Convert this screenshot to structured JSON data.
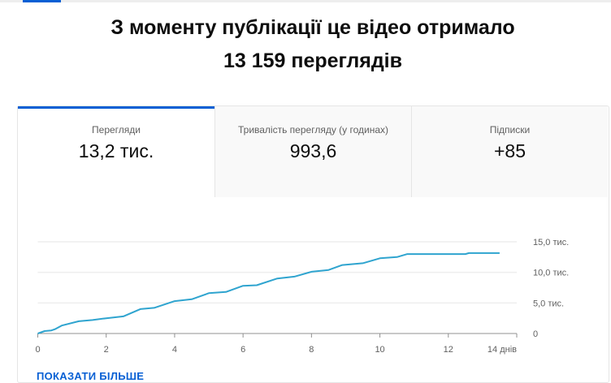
{
  "headline": {
    "line1": "З моменту публікації це відео отримало",
    "line2": "13 159 переглядів"
  },
  "tabs": [
    {
      "label": "Перегляди",
      "value": "13,2 тис.",
      "active": true
    },
    {
      "label": "Тривалість перегляду (у годинах)",
      "value": "993,6",
      "active": false
    },
    {
      "label": "Підписки",
      "value": "+85",
      "active": false
    }
  ],
  "show_more": "ПОКАЗАТИ БІЛЬШЕ",
  "colors": {
    "accent": "#065fd4",
    "line": "#2fa4cf"
  },
  "chart_data": {
    "type": "line",
    "xlim": [
      0,
      14
    ],
    "ylim": [
      0,
      15000
    ],
    "x_ticks": [
      "0",
      "2",
      "4",
      "6",
      "8",
      "10",
      "12",
      "14 днів"
    ],
    "x_tick_values": [
      0,
      2,
      4,
      6,
      8,
      10,
      12,
      14
    ],
    "y_ticks": [
      "0",
      "5,0 тис.",
      "10,0 тис.",
      "15,0 тис."
    ],
    "y_tick_values": [
      0,
      5000,
      10000,
      15000
    ],
    "grid": true,
    "x": [
      0,
      0.2,
      0.4,
      0.5,
      0.7,
      1.2,
      1.6,
      2,
      2.5,
      3,
      3.4,
      4,
      4.5,
      5,
      5.5,
      6,
      6.4,
      7,
      7.5,
      8,
      8.5,
      8.9,
      9.5,
      10,
      10.5,
      10.8,
      12.5,
      12.6,
      13.5
    ],
    "values": [
      0,
      400,
      500,
      700,
      1300,
      2000,
      2200,
      2500,
      2800,
      4000,
      4200,
      5300,
      5600,
      6600,
      6800,
      7800,
      7900,
      9000,
      9300,
      10100,
      10400,
      11200,
      11500,
      12300,
      12500,
      13000,
      13000,
      13150,
      13160
    ]
  }
}
